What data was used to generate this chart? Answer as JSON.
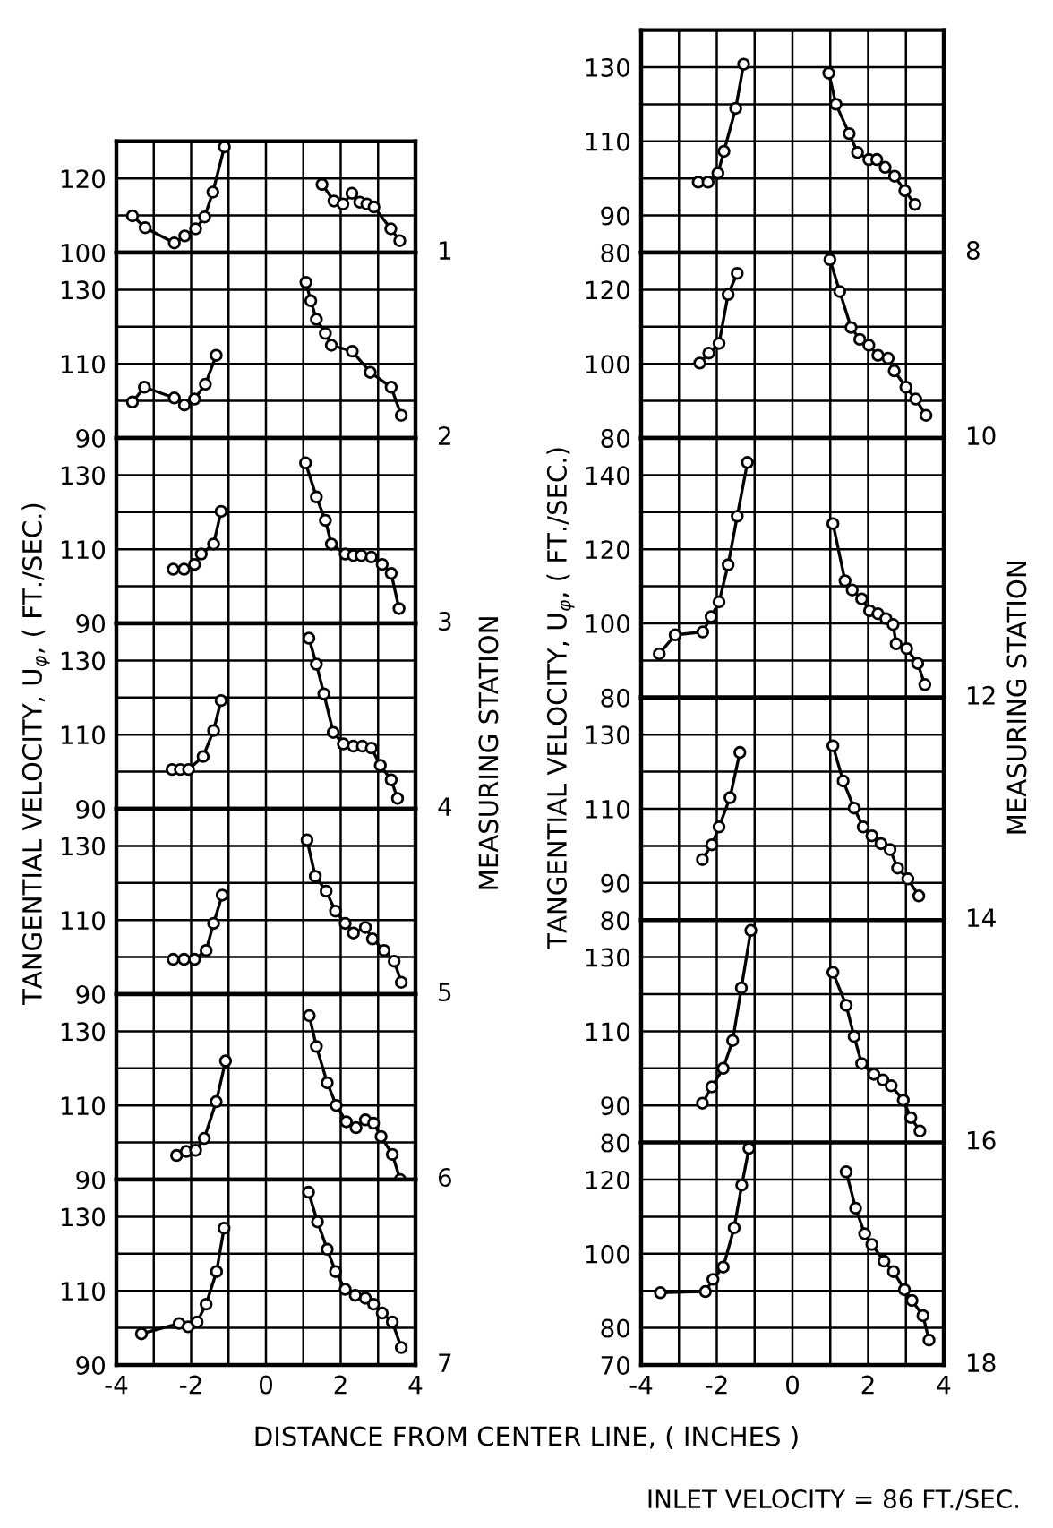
{
  "chart_data": [
    {
      "type": "line",
      "annotations": [
        "1"
      ],
      "xlim": [
        -4,
        4
      ],
      "ylim": [
        100,
        130
      ],
      "xticks": [
        -4,
        -3,
        -2,
        -1,
        0,
        1,
        2,
        3,
        4
      ],
      "yticks": [
        100,
        {
          "value": 110,
          "label": null
        },
        120
      ],
      "tick_labels": "y",
      "grid": true,
      "marker": "circle",
      "line_style": "solid",
      "series": [
        {
          "color": "#000000",
          "x": [
            -3.57,
            -3.23,
            -2.45,
            -2.17,
            -1.88,
            -1.64,
            -1.42,
            -1.11
          ],
          "values": [
            109.9,
            106.7,
            102.6,
            104.5,
            106.4,
            109.6,
            116.3,
            128.5
          ]
        },
        {
          "color": "#000000",
          "x": [
            1.5,
            1.82,
            2.06,
            2.3,
            2.51,
            2.7,
            2.89,
            3.34,
            3.58
          ],
          "values": [
            118.4,
            113.9,
            113.1,
            116.0,
            113.6,
            113.1,
            112.3,
            106.4,
            103.2
          ]
        }
      ]
    },
    {
      "type": "line",
      "annotations": [
        "2"
      ],
      "xlim": [
        -4,
        4
      ],
      "ylim": [
        90,
        140
      ],
      "xticks": [
        -4,
        -3,
        -2,
        -1,
        0,
        1,
        2,
        3,
        4
      ],
      "yticks": [
        90,
        {
          "value": 100,
          "label": null
        },
        110,
        {
          "value": 120,
          "label": null
        },
        130
      ],
      "tick_labels": "y",
      "grid": true,
      "marker": "circle",
      "line_style": "solid",
      "series": [
        {
          "color": "#000000",
          "x": [
            -3.57,
            -3.25,
            -2.45,
            -2.18,
            -1.91,
            -1.62,
            -1.33
          ],
          "values": [
            99.7,
            103.7,
            100.8,
            98.9,
            100.5,
            104.5,
            112.3
          ]
        },
        {
          "color": "#000000",
          "x": [
            1.07,
            1.2,
            1.35,
            1.59,
            1.75,
            2.31,
            2.79,
            3.35,
            3.62
          ],
          "values": [
            132,
            127,
            122,
            118.2,
            115,
            113.4,
            107.7,
            103.7,
            96.1
          ]
        }
      ]
    },
    {
      "type": "line",
      "annotations": [
        "3"
      ],
      "xlim": [
        -4,
        4
      ],
      "ylim": [
        90,
        140
      ],
      "xticks": [
        -4,
        -3,
        -2,
        -1,
        0,
        1,
        2,
        3,
        4
      ],
      "yticks": [
        90,
        {
          "value": 100,
          "label": null
        },
        110,
        {
          "value": 120,
          "label": null
        },
        130
      ],
      "tick_labels": "y",
      "grid": true,
      "marker": "circle",
      "line_style": "solid",
      "series": [
        {
          "color": "#000000",
          "x": [
            -2.48,
            -2.19,
            -1.91,
            -1.73,
            -1.4,
            -1.2
          ],
          "values": [
            104.6,
            104.6,
            105.9,
            108.7,
            111.4,
            120.2
          ]
        },
        {
          "color": "#000000",
          "x": [
            1.06,
            1.35,
            1.59,
            1.75,
            2.12,
            2.34,
            2.55,
            2.82,
            3.11,
            3.35,
            3.56
          ],
          "values": [
            133.3,
            124.1,
            117.8,
            111.4,
            108.7,
            108.3,
            108.3,
            107.9,
            105.9,
            103.5,
            94.0
          ]
        }
      ]
    },
    {
      "type": "line",
      "ylabel": "TANGENTIAL VELOCITY, U$_{φ}$, ( FT./SEC.)",
      "y2label": "MEASURING STATION",
      "annotations": [
        "4"
      ],
      "xlim": [
        -4,
        4
      ],
      "ylim": [
        90,
        140
      ],
      "xticks": [
        -4,
        -3,
        -2,
        -1,
        0,
        1,
        2,
        3,
        4
      ],
      "yticks": [
        90,
        {
          "value": 100,
          "label": null
        },
        110,
        {
          "value": 120,
          "label": null
        },
        130
      ],
      "tick_labels": "y",
      "grid": true,
      "marker": "circle",
      "line_style": "solid",
      "series": [
        {
          "color": "#000000",
          "x": [
            -2.51,
            -2.29,
            -2.07,
            -1.68,
            -1.4,
            -1.2
          ],
          "values": [
            100.6,
            100.6,
            100.6,
            104.1,
            111.1,
            119.2
          ]
        },
        {
          "color": "#000000",
          "x": [
            1.15,
            1.35,
            1.55,
            1.8,
            2.07,
            2.34,
            2.58,
            2.82,
            3.06,
            3.35,
            3.52
          ],
          "values": [
            136,
            129,
            121,
            110.6,
            107.5,
            106.9,
            106.9,
            106.4,
            101.7,
            97.8,
            92.8
          ]
        }
      ]
    },
    {
      "type": "line",
      "annotations": [
        "5"
      ],
      "xlim": [
        -4,
        4
      ],
      "ylim": [
        90,
        140
      ],
      "xticks": [
        -4,
        -3,
        -2,
        -1,
        0,
        1,
        2,
        3,
        4
      ],
      "yticks": [
        90,
        {
          "value": 100,
          "label": null
        },
        110,
        {
          "value": 120,
          "label": null
        },
        130
      ],
      "tick_labels": "y",
      "grid": true,
      "marker": "circle",
      "line_style": "solid",
      "series": [
        {
          "color": "#000000",
          "x": [
            -2.48,
            -2.19,
            -1.91,
            -1.6,
            -1.4,
            -1.17
          ],
          "values": [
            99.4,
            99.4,
            99.4,
            101.8,
            109.1,
            116.7
          ]
        },
        {
          "color": "#000000",
          "x": [
            1.1,
            1.32,
            1.61,
            1.86,
            2.12,
            2.34,
            2.66,
            2.85,
            3.16,
            3.43,
            3.62
          ],
          "values": [
            131.6,
            121.8,
            117.8,
            112.4,
            109.1,
            106.5,
            108.0,
            104.9,
            101.8,
            98.9,
            93.2
          ]
        }
      ]
    },
    {
      "type": "line",
      "annotations": [
        "6"
      ],
      "xlim": [
        -4,
        4
      ],
      "ylim": [
        90,
        140
      ],
      "xticks": [
        -4,
        -3,
        -2,
        -1,
        0,
        1,
        2,
        3,
        4
      ],
      "yticks": [
        90,
        {
          "value": 100,
          "label": null
        },
        110,
        {
          "value": 120,
          "label": null
        },
        130
      ],
      "tick_labels": "y",
      "grid": true,
      "marker": "circle",
      "line_style": "solid",
      "series": [
        {
          "color": "#000000",
          "x": [
            -2.39,
            -2.13,
            -1.88,
            -1.65,
            -1.33,
            -1.08
          ],
          "values": [
            96.5,
            97.6,
            97.9,
            101.1,
            111.0,
            122
          ]
        },
        {
          "color": "#000000",
          "x": [
            1.16,
            1.35,
            1.64,
            1.88,
            2.15,
            2.41,
            2.66,
            2.88,
            3.08,
            3.38,
            3.59
          ],
          "values": [
            134.2,
            125.9,
            116.1,
            110.0,
            105.6,
            104.0,
            106.1,
            105.2,
            101.6,
            96.8,
            90.0
          ]
        }
      ]
    },
    {
      "type": "line",
      "xlabel": "DISTANCE FROM CENTER LINE, ( INCHES )",
      "annotations": [
        "7"
      ],
      "xlim": [
        -4,
        4
      ],
      "ylim": [
        90,
        140
      ],
      "xticks": [
        -4,
        {
          "value": -3,
          "label": null
        },
        -2,
        {
          "value": -1,
          "label": null
        },
        0,
        {
          "value": 1,
          "label": null
        },
        2,
        {
          "value": 3,
          "label": null
        },
        4
      ],
      "yticks": [
        90,
        {
          "value": 100,
          "label": null
        },
        110,
        {
          "value": 120,
          "label": null
        },
        130
      ],
      "grid": true,
      "marker": "circle",
      "line_style": "solid",
      "series": [
        {
          "color": "#000000",
          "x": [
            -3.33,
            -2.32,
            -2.08,
            -1.84,
            -1.6,
            -1.32,
            -1.12
          ],
          "values": [
            98.4,
            101.2,
            100.3,
            101.6,
            106.4,
            115.2,
            126.9
          ]
        },
        {
          "color": "#000000",
          "x": [
            1.14,
            1.38,
            1.64,
            1.86,
            2.12,
            2.39,
            2.66,
            2.88,
            3.11,
            3.38,
            3.62
          ],
          "values": [
            136.6,
            128.6,
            121.2,
            115.2,
            110.4,
            108.8,
            108.0,
            106.4,
            104.0,
            101.6,
            94.7
          ]
        }
      ]
    },
    {
      "type": "line",
      "annotations": [
        "8"
      ],
      "xlim": [
        -4,
        4
      ],
      "ylim": [
        80,
        140
      ],
      "xticks": [
        -4,
        -3,
        -2,
        -1,
        0,
        1,
        2,
        3,
        4
      ],
      "yticks": [
        80,
        90,
        {
          "value": 100,
          "label": null
        },
        110,
        {
          "value": 120,
          "label": null
        },
        130
      ],
      "tick_labels": "y",
      "grid": true,
      "marker": "circle",
      "line_style": "solid",
      "series": [
        {
          "color": "#000000",
          "x": [
            -2.49,
            -2.23,
            -1.97,
            -1.81,
            -1.5,
            -1.29
          ],
          "values": [
            99.0,
            99.0,
            101.4,
            107.3,
            118.9,
            130.8
          ]
        },
        {
          "color": "#000000",
          "x": [
            0.96,
            1.15,
            1.5,
            1.72,
            2.02,
            2.23,
            2.45,
            2.7,
            2.97,
            3.24
          ],
          "values": [
            128.4,
            120.0,
            112.1,
            107.0,
            105.1,
            105.1,
            103.0,
            100.6,
            96.7,
            93.0
          ]
        }
      ]
    },
    {
      "type": "line",
      "annotations": [
        "10"
      ],
      "xlim": [
        -4,
        4
      ],
      "ylim": [
        80,
        130
      ],
      "xticks": [
        -4,
        -3,
        -2,
        -1,
        0,
        1,
        2,
        3,
        4
      ],
      "yticks": [
        80,
        {
          "value": 90,
          "label": null
        },
        100,
        {
          "value": 110,
          "label": null
        },
        120
      ],
      "tick_labels": "y",
      "grid": true,
      "marker": "circle",
      "line_style": "solid",
      "series": [
        {
          "color": "#000000",
          "x": [
            -2.45,
            -2.21,
            -1.94,
            -1.7,
            -1.46
          ],
          "values": [
            100.2,
            102.9,
            105.5,
            118.7,
            124.4
          ]
        },
        {
          "color": "#000000",
          "x": [
            0.99,
            1.25,
            1.55,
            1.78,
            2.02,
            2.26,
            2.53,
            2.69,
            3.0,
            3.26,
            3.53
          ],
          "values": [
            128.1,
            119.5,
            109.8,
            106.6,
            105.0,
            102.3,
            101.5,
            98.1,
            93.7,
            90.5,
            86.1
          ]
        }
      ]
    },
    {
      "type": "line",
      "annotations": [
        "12"
      ],
      "xlim": [
        -4,
        4
      ],
      "ylim": [
        80,
        150
      ],
      "xticks": [
        -4,
        -3,
        -2,
        -1,
        0,
        1,
        2,
        3,
        4
      ],
      "yticks": [
        80,
        {
          "value": 90,
          "label": null
        },
        100,
        {
          "value": 110,
          "label": null
        },
        120,
        {
          "value": 130,
          "label": null
        },
        140
      ],
      "tick_labels": "y",
      "grid": true,
      "marker": "circle",
      "line_style": "solid",
      "series": [
        {
          "color": "#000000",
          "x": [
            -3.52,
            -3.1,
            -2.37,
            -2.15,
            -1.94,
            -1.7,
            -1.46,
            -1.19
          ],
          "values": [
            91.8,
            96.9,
            97.7,
            101.8,
            105.8,
            115.8,
            128.9,
            143.4
          ]
        },
        {
          "color": "#000000",
          "x": [
            1.07,
            1.39,
            1.58,
            1.83,
            2.04,
            2.26,
            2.47,
            2.66,
            2.74,
            3.02,
            3.31,
            3.5
          ],
          "values": [
            126.9,
            111.5,
            109.0,
            106.6,
            103.4,
            102.6,
            101.3,
            99.7,
            94.5,
            93.2,
            89.2,
            83.5
          ]
        }
      ]
    },
    {
      "type": "line",
      "ylabel": "TANGENTIAL VELOCITY, U$_{φ}$, ( FT./SEC.)",
      "y2label": "MEASURING STATION",
      "annotations": [
        "14"
      ],
      "xlim": [
        -4,
        4
      ],
      "ylim": [
        80,
        140
      ],
      "xticks": [
        -4,
        -3,
        -2,
        -1,
        0,
        1,
        2,
        3,
        4
      ],
      "yticks": [
        80,
        90,
        {
          "value": 100,
          "label": null
        },
        110,
        {
          "value": 120,
          "label": null
        },
        130
      ],
      "tick_labels": "y",
      "grid": true,
      "marker": "circle",
      "line_style": "solid",
      "series": [
        {
          "color": "#000000",
          "x": [
            -2.38,
            -2.13,
            -1.94,
            -1.65,
            -1.39
          ],
          "values": [
            96.3,
            100.3,
            105.1,
            113.0,
            125.2
          ]
        },
        {
          "color": "#000000",
          "x": [
            1.07,
            1.34,
            1.63,
            1.87,
            2.1,
            2.34,
            2.58,
            2.78,
            3.05,
            3.34
          ],
          "values": [
            127.0,
            117.5,
            110.2,
            105.1,
            102.7,
            100.6,
            99.0,
            94.0,
            91.1,
            86.5
          ]
        }
      ]
    },
    {
      "type": "line",
      "annotations": [
        "16"
      ],
      "xlim": [
        -4,
        4
      ],
      "ylim": [
        80,
        140
      ],
      "xticks": [
        -4,
        -3,
        -2,
        -1,
        0,
        1,
        2,
        3,
        4
      ],
      "yticks": [
        80,
        90,
        {
          "value": 100,
          "label": null
        },
        110,
        {
          "value": 120,
          "label": null
        },
        130
      ],
      "tick_labels": "y",
      "grid": true,
      "marker": "circle",
      "line_style": "solid",
      "series": [
        {
          "color": "#000000",
          "x": [
            -2.38,
            -2.13,
            -1.83,
            -1.58,
            -1.35,
            -1.1
          ],
          "values": [
            90.6,
            95.0,
            100.0,
            107.5,
            121.7,
            137.2
          ]
        },
        {
          "color": "#000000",
          "x": [
            1.07,
            1.42,
            1.63,
            1.83,
            2.15,
            2.39,
            2.61,
            2.93,
            3.13,
            3.37
          ],
          "values": [
            125.9,
            117.0,
            108.6,
            101.3,
            98.4,
            96.9,
            95.3,
            91.4,
            86.7,
            83.1
          ]
        }
      ]
    },
    {
      "type": "line",
      "annotations": [
        "18",
        "INLET VELOCITY = 86 FT./SEC."
      ],
      "xlim": [
        -4,
        4
      ],
      "ylim": [
        70,
        130
      ],
      "xticks": [
        -4,
        {
          "value": -3,
          "label": null
        },
        -2,
        {
          "value": -1,
          "label": null
        },
        0,
        {
          "value": 1,
          "label": null
        },
        2,
        {
          "value": 3,
          "label": null
        },
        4
      ],
      "yticks": [
        70,
        80,
        {
          "value": 90,
          "label": null
        },
        100,
        {
          "value": 110,
          "label": null
        },
        120
      ],
      "grid": true,
      "marker": "circle",
      "line_style": "solid",
      "series": [
        {
          "color": "#000000",
          "x": [
            -3.49,
            -2.3,
            -2.1,
            -1.83,
            -1.54,
            -1.34,
            -1.15
          ],
          "values": [
            89.5,
            89.8,
            93.1,
            96.4,
            107.0,
            118.5,
            128.4
          ]
        },
        {
          "color": "#000000",
          "x": [
            1.42,
            1.67,
            1.91,
            2.1,
            2.42,
            2.67,
            2.96,
            3.16,
            3.45,
            3.61
          ],
          "values": [
            122.1,
            112.3,
            105.4,
            102.5,
            98.0,
            95.2,
            90.3,
            87.4,
            83.3,
            76.7
          ]
        }
      ]
    }
  ]
}
